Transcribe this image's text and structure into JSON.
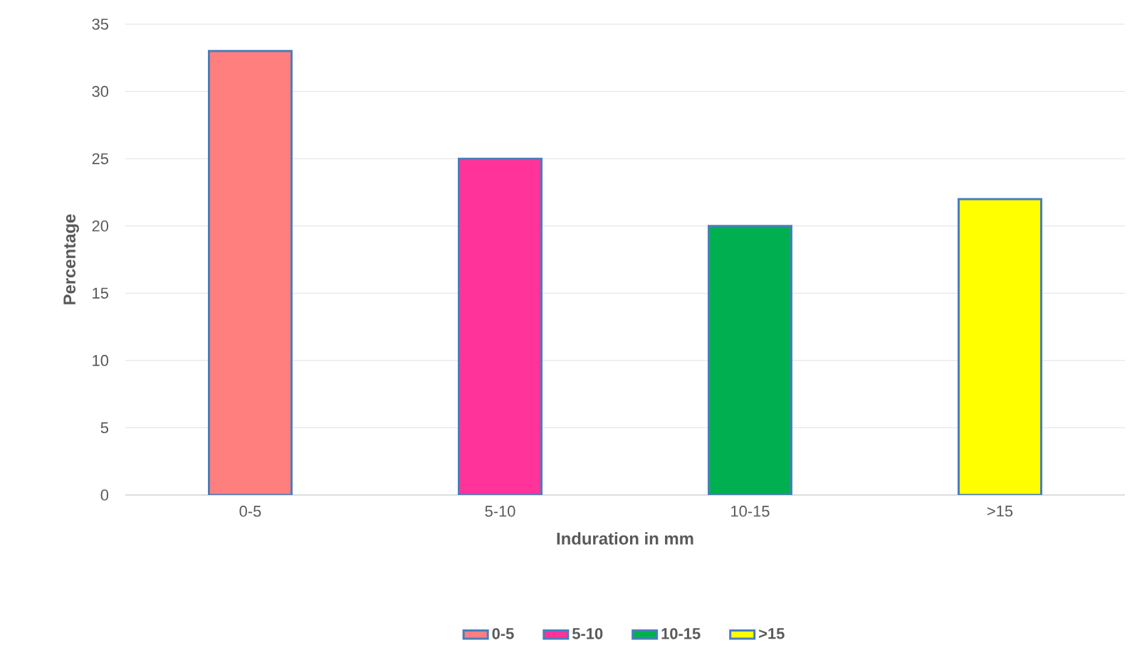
{
  "chart_data": {
    "type": "bar",
    "xlabel": "Induration in mm",
    "ylabel": "Percentage",
    "categories": [
      "0-5",
      "5-10",
      "10-15",
      ">15"
    ],
    "series": [
      {
        "name": "0-5",
        "color": "#ff7f7f",
        "values": [
          33,
          null,
          null,
          null
        ]
      },
      {
        "name": "5-10",
        "color": "#ff3399",
        "values": [
          null,
          25,
          null,
          null
        ]
      },
      {
        "name": "10-15",
        "color": "#00b050",
        "values": [
          null,
          null,
          20,
          null
        ]
      },
      {
        "name": ">15",
        "color": "#ffff00",
        "values": [
          null,
          null,
          null,
          22
        ]
      }
    ],
    "ylim": [
      0,
      35
    ],
    "yticks": [
      0,
      5,
      10,
      15,
      20,
      25,
      30,
      35
    ],
    "grid": "y",
    "legend": "bottom"
  }
}
